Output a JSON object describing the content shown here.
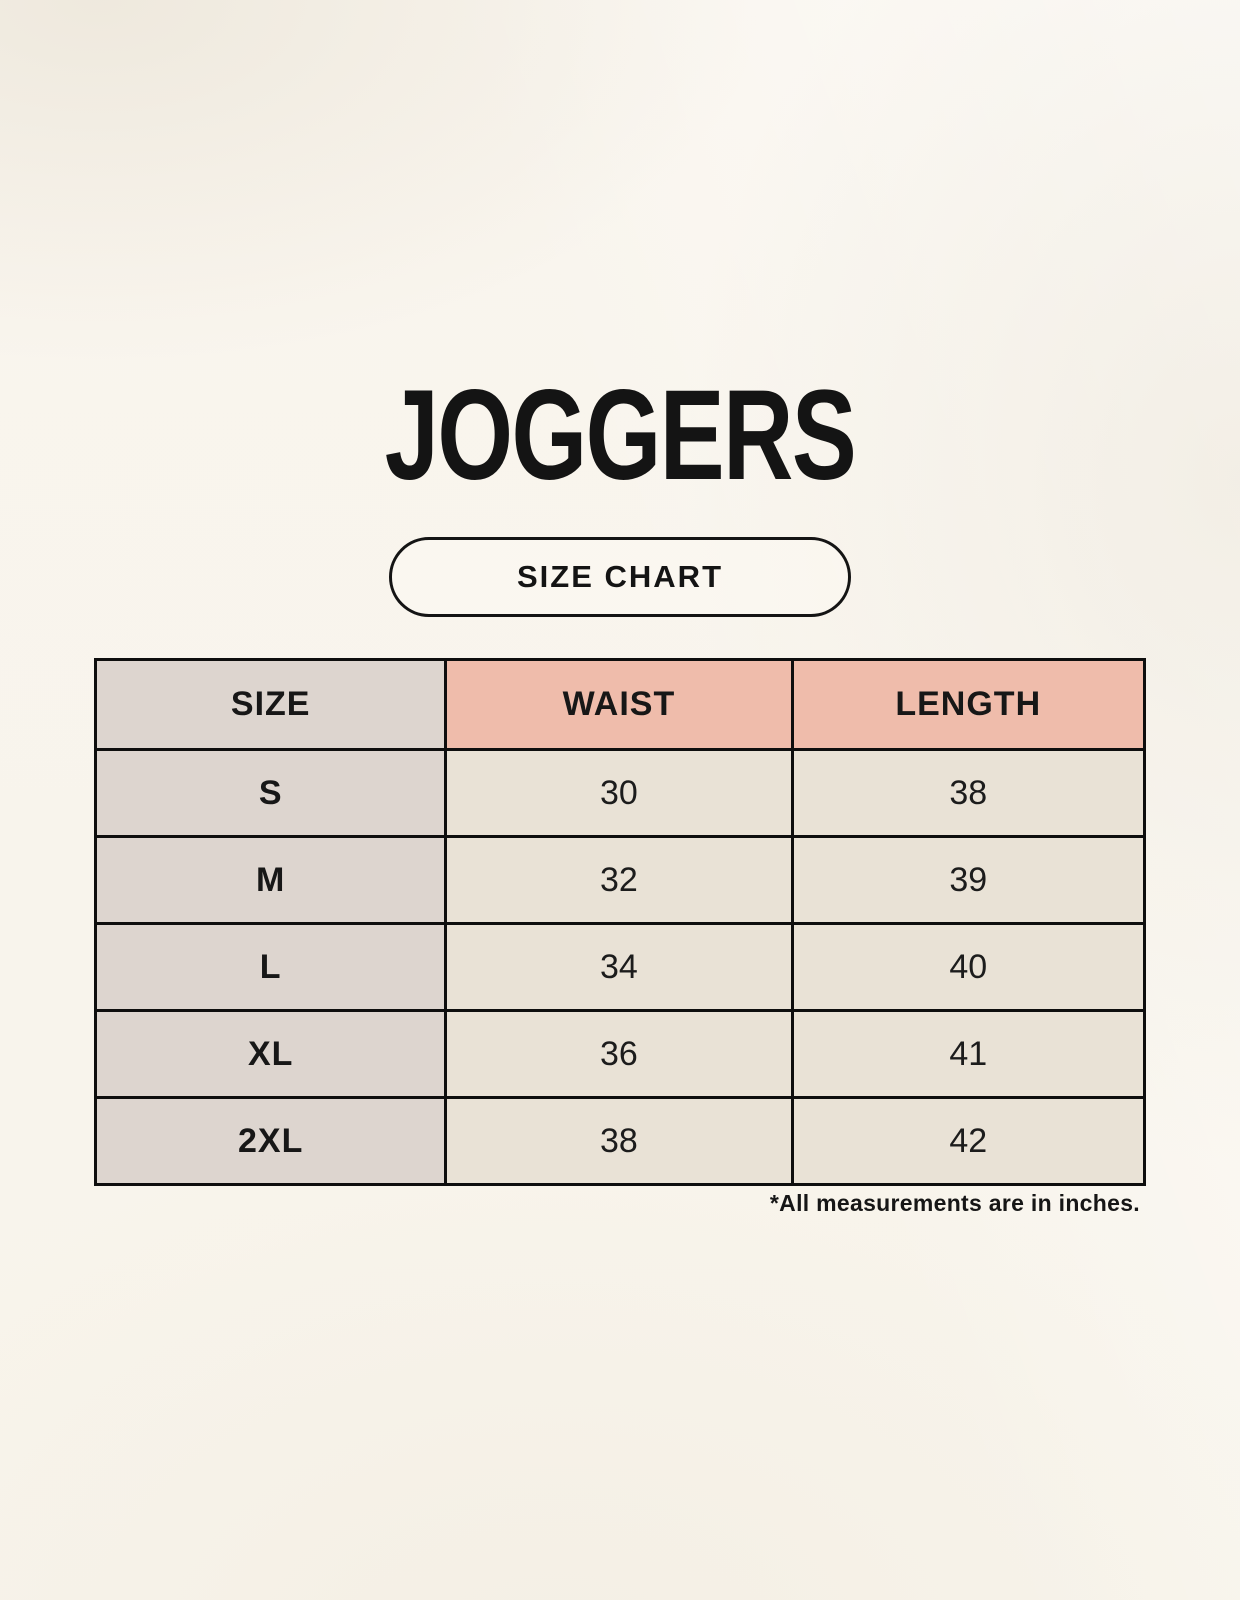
{
  "header": {
    "title": "JOGGERS",
    "badge_label": "SIZE CHART"
  },
  "table": {
    "columns": [
      "SIZE",
      "WAIST",
      "LENGTH"
    ],
    "rows": [
      {
        "size": "S",
        "waist": "30",
        "length": "38"
      },
      {
        "size": "M",
        "waist": "32",
        "length": "39"
      },
      {
        "size": "L",
        "waist": "34",
        "length": "40"
      },
      {
        "size": "XL",
        "waist": "36",
        "length": "41"
      },
      {
        "size": "2XL",
        "waist": "38",
        "length": "42"
      }
    ],
    "footnote": "*All measurements are in inches."
  },
  "colors": {
    "background": "#F8F4EB",
    "header_size_bg": "#DDD5CF",
    "header_measure_bg": "#EFBCAB",
    "row_label_bg": "#DDD5CF",
    "row_value_bg": "#E9E2D6",
    "border": "#0E0E0E",
    "text": "#171717"
  }
}
